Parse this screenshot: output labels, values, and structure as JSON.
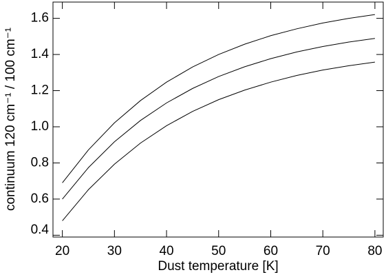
{
  "chart_data": {
    "type": "line",
    "x_label": "Dust temperature [K]",
    "y_label": "continuum 120 cm⁻¹ / 100 cm⁻¹",
    "x": [
      20,
      25,
      30,
      35,
      40,
      45,
      50,
      55,
      60,
      65,
      70,
      75,
      80
    ],
    "series": [
      {
        "color": "#000000",
        "values": [
          0.69,
          0.872,
          1.022,
          1.145,
          1.247,
          1.331,
          1.4,
          1.457,
          1.504,
          1.542,
          1.574,
          1.6,
          1.621
        ]
      },
      {
        "color": "#000000",
        "values": [
          0.6,
          0.774,
          0.917,
          1.035,
          1.132,
          1.212,
          1.278,
          1.332,
          1.377,
          1.414,
          1.444,
          1.469,
          1.489
        ]
      },
      {
        "color": "#000000",
        "values": [
          0.48,
          0.652,
          0.793,
          0.91,
          1.006,
          1.085,
          1.15,
          1.203,
          1.247,
          1.284,
          1.314,
          1.338,
          1.358
        ]
      }
    ],
    "xlim": [
      18.2,
      81.6
    ],
    "ylim": [
      0.39,
      1.69
    ],
    "xticks": [
      20,
      30,
      40,
      50,
      60,
      70,
      80
    ],
    "yticks": [
      0.4,
      0.6,
      0.8,
      {
        "value": 1,
        "label": "1.0"
      },
      1.2,
      1.4,
      1.6
    ]
  }
}
